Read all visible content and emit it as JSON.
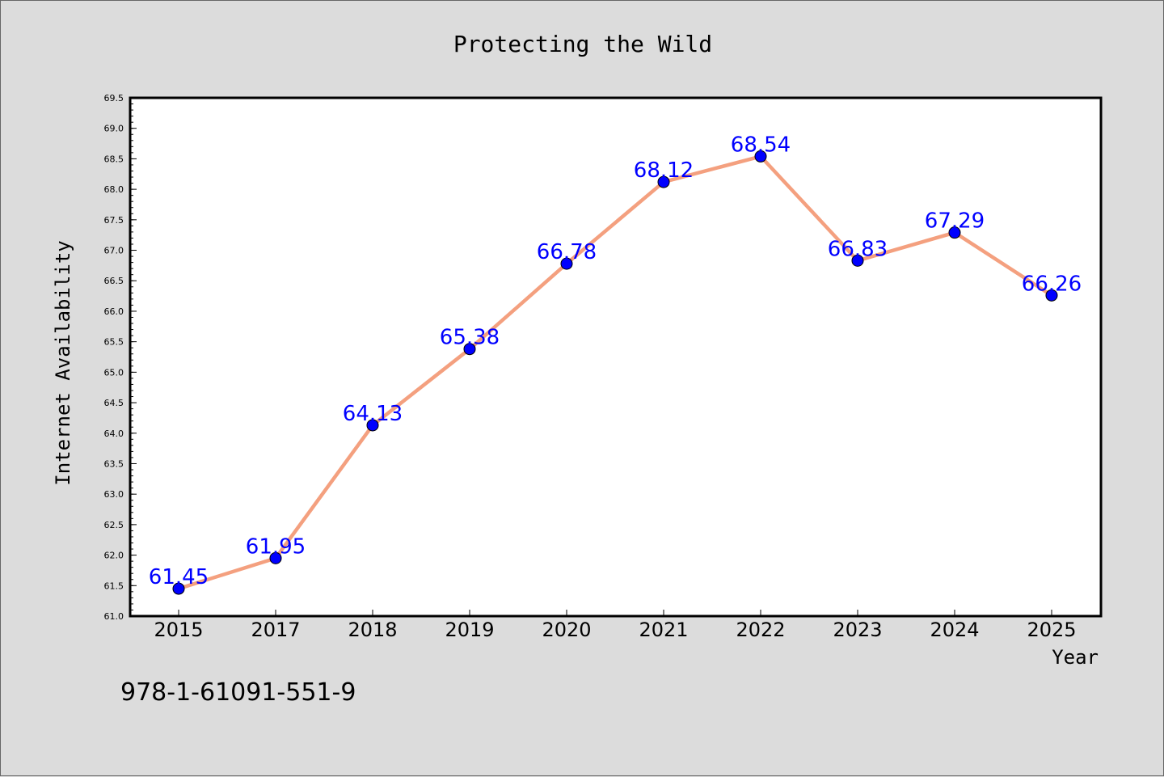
{
  "chart_data": {
    "type": "line",
    "title": "Protecting the Wild",
    "xlabel": "Year",
    "ylabel": "Internet Availability",
    "categories": [
      "2015",
      "2017",
      "2018",
      "2019",
      "2020",
      "2021",
      "2022",
      "2023",
      "2024",
      "2025"
    ],
    "series": [
      {
        "values": [
          61.45,
          61.95,
          64.13,
          65.38,
          66.78,
          68.12,
          68.54,
          66.83,
          67.29,
          66.26
        ],
        "line_color": "#f4a07f",
        "marker_color": "#0000ff",
        "label_color": "#0000ff"
      }
    ],
    "data_labels": [
      "61.45",
      "61.95",
      "64.13",
      "65.38",
      "66.78",
      "68.12",
      "68.54",
      "66.83",
      "67.29",
      "66.26"
    ],
    "ylim": [
      61.0,
      69.5
    ],
    "yticks": [
      "61.0",
      "61.5",
      "62.0",
      "62.5",
      "63.0",
      "63.5",
      "64.0",
      "64.5",
      "65.0",
      "65.5",
      "66.0",
      "66.5",
      "67.0",
      "67.5",
      "68.0",
      "68.5",
      "69.0",
      "69.5"
    ],
    "grid": false,
    "footer": "978-1-61091-551-9"
  }
}
